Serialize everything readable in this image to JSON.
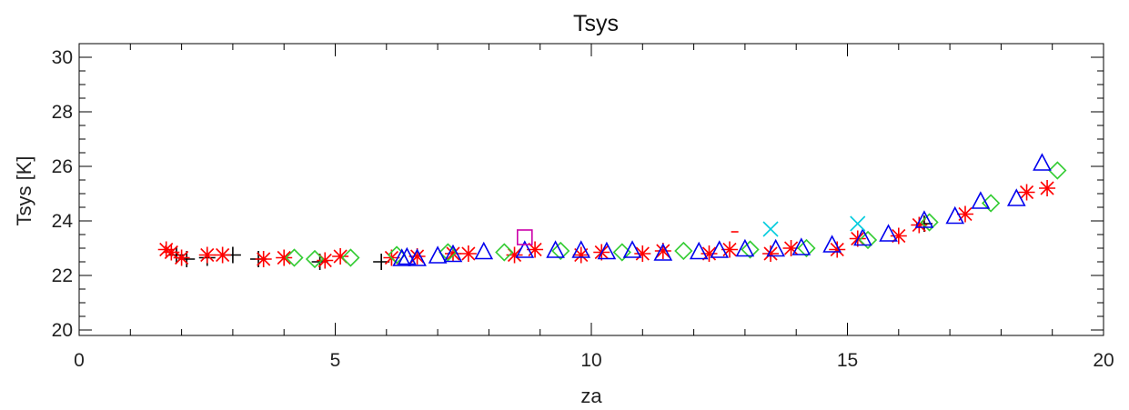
{
  "chart_data": {
    "type": "scatter",
    "title": "Tsys",
    "xlabel": "za",
    "ylabel": "Tsys [K]",
    "xlim": [
      0,
      20
    ],
    "ylim": [
      19.8,
      30.5
    ],
    "x_ticks": [
      0,
      5,
      10,
      15,
      20
    ],
    "y_ticks": [
      20,
      22,
      24,
      26,
      28,
      30
    ],
    "grid": false,
    "series": [
      {
        "marker": "plus",
        "color": "#000000",
        "points": [
          [
            1.9,
            22.75
          ],
          [
            2.1,
            22.6
          ],
          [
            2.5,
            22.65
          ],
          [
            3.0,
            22.75
          ],
          [
            3.5,
            22.6
          ],
          [
            4.7,
            22.5
          ],
          [
            5.9,
            22.5
          ],
          [
            16.5,
            23.9
          ]
        ]
      },
      {
        "marker": "asterisk",
        "color": "#ff0000",
        "points": [
          [
            1.7,
            22.95
          ],
          [
            1.8,
            22.85
          ],
          [
            2.0,
            22.65
          ],
          [
            2.5,
            22.75
          ],
          [
            2.8,
            22.75
          ],
          [
            3.6,
            22.6
          ],
          [
            4.0,
            22.65
          ],
          [
            4.8,
            22.55
          ],
          [
            5.1,
            22.7
          ],
          [
            6.1,
            22.65
          ],
          [
            6.6,
            22.7
          ],
          [
            7.3,
            22.8
          ],
          [
            7.6,
            22.8
          ],
          [
            8.5,
            22.75
          ],
          [
            8.9,
            22.95
          ],
          [
            9.8,
            22.75
          ],
          [
            10.2,
            22.85
          ],
          [
            11.0,
            22.8
          ],
          [
            11.4,
            22.9
          ],
          [
            12.3,
            22.8
          ],
          [
            12.7,
            22.95
          ],
          [
            13.5,
            22.8
          ],
          [
            13.9,
            23.0
          ],
          [
            14.8,
            22.95
          ],
          [
            15.2,
            23.35
          ],
          [
            16.0,
            23.45
          ],
          [
            16.4,
            23.85
          ],
          [
            17.3,
            24.25
          ],
          [
            18.5,
            25.05
          ],
          [
            18.9,
            25.2
          ]
        ]
      },
      {
        "marker": "diamond",
        "color": "#33cc33",
        "points": [
          [
            4.2,
            22.65
          ],
          [
            4.6,
            22.6
          ],
          [
            5.3,
            22.65
          ],
          [
            6.2,
            22.75
          ],
          [
            7.2,
            22.85
          ],
          [
            8.3,
            22.85
          ],
          [
            9.4,
            22.9
          ],
          [
            10.6,
            22.85
          ],
          [
            11.8,
            22.9
          ],
          [
            13.1,
            22.95
          ],
          [
            14.2,
            23.0
          ],
          [
            15.4,
            23.3
          ],
          [
            16.6,
            23.95
          ],
          [
            17.8,
            24.65
          ],
          [
            19.1,
            25.85
          ]
        ]
      },
      {
        "marker": "triangle",
        "color": "#0000ee",
        "points": [
          [
            6.3,
            22.6
          ],
          [
            6.4,
            22.65
          ],
          [
            6.6,
            22.6
          ],
          [
            7.0,
            22.7
          ],
          [
            7.3,
            22.75
          ],
          [
            7.9,
            22.85
          ],
          [
            8.7,
            22.9
          ],
          [
            9.3,
            22.9
          ],
          [
            9.8,
            22.9
          ],
          [
            10.3,
            22.85
          ],
          [
            10.8,
            22.9
          ],
          [
            11.4,
            22.8
          ],
          [
            12.1,
            22.85
          ],
          [
            12.5,
            22.9
          ],
          [
            13.0,
            22.95
          ],
          [
            13.6,
            22.95
          ],
          [
            14.1,
            23.0
          ],
          [
            14.7,
            23.1
          ],
          [
            15.3,
            23.35
          ],
          [
            15.8,
            23.5
          ],
          [
            16.5,
            24.0
          ],
          [
            17.1,
            24.15
          ],
          [
            17.6,
            24.7
          ],
          [
            18.3,
            24.8
          ],
          [
            18.8,
            26.1
          ]
        ]
      },
      {
        "marker": "x",
        "color": "#00ccdd",
        "points": [
          [
            13.5,
            23.7
          ],
          [
            15.2,
            23.9
          ]
        ]
      },
      {
        "marker": "square",
        "color": "#cc00aa",
        "points": [
          [
            8.7,
            23.4
          ]
        ]
      },
      {
        "marker": "dash",
        "color": "#ff0000",
        "points": [
          [
            12.8,
            23.6
          ]
        ]
      }
    ]
  }
}
